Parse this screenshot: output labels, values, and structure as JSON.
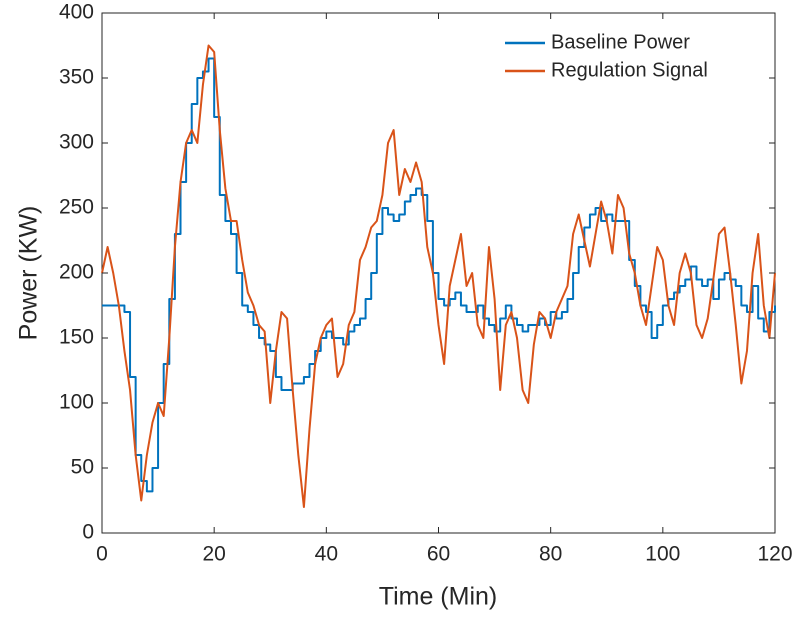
{
  "chart_data": {
    "type": "line",
    "xlabel": "Time (Min)",
    "ylabel": "Power (KW)",
    "x": [
      0,
      1,
      2,
      3,
      4,
      5,
      6,
      7,
      8,
      9,
      10,
      11,
      12,
      13,
      14,
      15,
      16,
      17,
      18,
      19,
      20,
      21,
      22,
      23,
      24,
      25,
      26,
      27,
      28,
      29,
      30,
      31,
      32,
      33,
      34,
      35,
      36,
      37,
      38,
      39,
      40,
      41,
      42,
      43,
      44,
      45,
      46,
      47,
      48,
      49,
      50,
      51,
      52,
      53,
      54,
      55,
      56,
      57,
      58,
      59,
      60,
      61,
      62,
      63,
      64,
      65,
      66,
      67,
      68,
      69,
      70,
      71,
      72,
      73,
      74,
      75,
      76,
      77,
      78,
      79,
      80,
      81,
      82,
      83,
      84,
      85,
      86,
      87,
      88,
      89,
      90,
      91,
      92,
      93,
      94,
      95,
      96,
      97,
      98,
      99,
      100,
      101,
      102,
      103,
      104,
      105,
      106,
      107,
      108,
      109,
      110,
      111,
      112,
      113,
      114,
      115,
      116,
      117,
      118,
      119,
      120
    ],
    "series": [
      {
        "name": "Baseline Power",
        "color": "#0072bd",
        "step": true,
        "values": [
          175,
          175,
          175,
          175,
          170,
          120,
          60,
          40,
          32,
          50,
          100,
          130,
          180,
          230,
          270,
          300,
          330,
          350,
          355,
          365,
          320,
          260,
          240,
          230,
          200,
          175,
          170,
          160,
          150,
          145,
          140,
          120,
          110,
          110,
          115,
          115,
          120,
          130,
          140,
          150,
          155,
          150,
          150,
          145,
          155,
          160,
          165,
          180,
          200,
          230,
          250,
          245,
          240,
          245,
          255,
          260,
          265,
          260,
          240,
          200,
          180,
          175,
          180,
          185,
          175,
          170,
          170,
          175,
          165,
          160,
          155,
          165,
          175,
          165,
          160,
          155,
          160,
          160,
          165,
          160,
          170,
          165,
          170,
          180,
          200,
          220,
          235,
          245,
          250,
          240,
          245,
          240,
          240,
          240,
          210,
          190,
          175,
          170,
          150,
          160,
          175,
          180,
          185,
          190,
          195,
          205,
          195,
          190,
          195,
          180,
          195,
          200,
          195,
          190,
          175,
          170,
          190,
          165,
          155,
          170,
          175
        ]
      },
      {
        "name": "Regulation Signal",
        "color": "#d95319",
        "values": [
          200,
          220,
          200,
          175,
          140,
          110,
          60,
          25,
          60,
          85,
          100,
          90,
          150,
          220,
          270,
          300,
          310,
          300,
          345,
          375,
          370,
          310,
          265,
          240,
          240,
          210,
          185,
          175,
          160,
          155,
          100,
          140,
          170,
          165,
          110,
          60,
          20,
          80,
          130,
          150,
          160,
          165,
          120,
          130,
          160,
          170,
          210,
          220,
          235,
          240,
          260,
          300,
          310,
          260,
          280,
          270,
          285,
          270,
          220,
          200,
          160,
          130,
          190,
          210,
          230,
          190,
          200,
          160,
          150,
          220,
          180,
          110,
          160,
          170,
          150,
          110,
          100,
          145,
          170,
          165,
          150,
          170,
          180,
          190,
          230,
          245,
          225,
          205,
          230,
          255,
          240,
          215,
          260,
          250,
          215,
          200,
          175,
          160,
          190,
          220,
          210,
          175,
          160,
          200,
          215,
          200,
          160,
          150,
          165,
          195,
          230,
          235,
          200,
          160,
          115,
          140,
          200,
          230,
          175,
          150,
          200
        ]
      }
    ],
    "xlim": [
      0,
      120
    ],
    "xticks": [
      0,
      20,
      40,
      60,
      80,
      100,
      120
    ],
    "ylim": [
      0,
      400
    ],
    "yticks": [
      0,
      50,
      100,
      150,
      200,
      250,
      300,
      350,
      400
    ],
    "legend": "upper right"
  }
}
